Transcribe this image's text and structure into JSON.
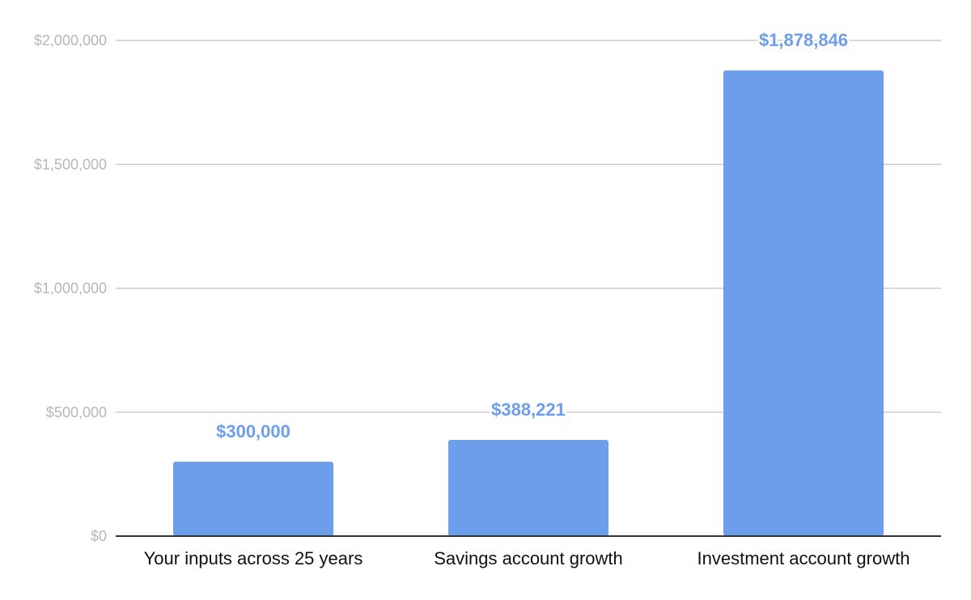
{
  "chart_data": {
    "type": "bar",
    "categories": [
      "Your inputs across 25 years",
      "Savings account growth",
      "Investment account growth"
    ],
    "values": [
      300000,
      388221,
      1878846
    ],
    "data_labels": [
      "$300,000",
      "$388,221",
      "$1,878,846"
    ],
    "y_ticks": [
      0,
      500000,
      1000000,
      1500000,
      2000000
    ],
    "y_tick_labels": [
      "$0",
      "$500,000",
      "$1,000,000",
      "$1,500,000",
      "$2,000,000"
    ],
    "ylim": [
      0,
      2000000
    ],
    "grid": true,
    "legend": "none",
    "title": "",
    "xlabel": "",
    "ylabel": ""
  },
  "colors": {
    "bar": "#6d9eeb",
    "data_label": "#6d9eeb",
    "gridline": "#cccccc",
    "baseline": "#333333",
    "tick_label": "#b7b7b7",
    "category_label": "#111111",
    "background": "#ffffff"
  }
}
